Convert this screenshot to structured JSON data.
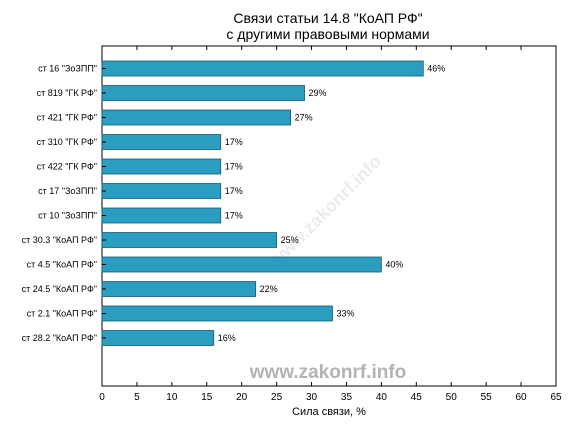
{
  "colors": {
    "bar_fill": "#2a9dc0",
    "bar_stroke": "#1a5c73",
    "axis": "#000000"
  },
  "watermark": "www.zakonrf.info",
  "chart_data": {
    "type": "bar",
    "orientation": "horizontal",
    "title": [
      "Связи статьи 14.8 \"КоАП РФ\"",
      "с другими правовыми нормами"
    ],
    "xlabel": "Сила связи, %",
    "ylabel": "",
    "xlim": [
      0,
      65
    ],
    "xticks": [
      0,
      5,
      10,
      15,
      20,
      25,
      30,
      35,
      40,
      45,
      50,
      55,
      60,
      65
    ],
    "grid": false,
    "categories": [
      "ст 16 \"ЗоЗПП\"",
      "ст 819 \"ГК РФ\"",
      "ст 421 \"ГК РФ\"",
      "ст 310 \"ГК РФ\"",
      "ст 422 \"ГК РФ\"",
      "ст 17 \"ЗоЗПП\"",
      "ст 10 \"ЗоЗПП\"",
      "ст 30.3 \"КоАП РФ\"",
      "ст 4.5 \"КоАП РФ\"",
      "ст 24.5 \"КоАП РФ\"",
      "ст 2.1 \"КоАП РФ\"",
      "ст 28.2 \"КоАП РФ\""
    ],
    "values": [
      46,
      29,
      27,
      17,
      17,
      17,
      17,
      25,
      40,
      22,
      33,
      16
    ],
    "data_labels": [
      "46%",
      "29%",
      "27%",
      "17%",
      "17%",
      "17%",
      "17%",
      "25%",
      "40%",
      "22%",
      "33%",
      "16%"
    ]
  }
}
